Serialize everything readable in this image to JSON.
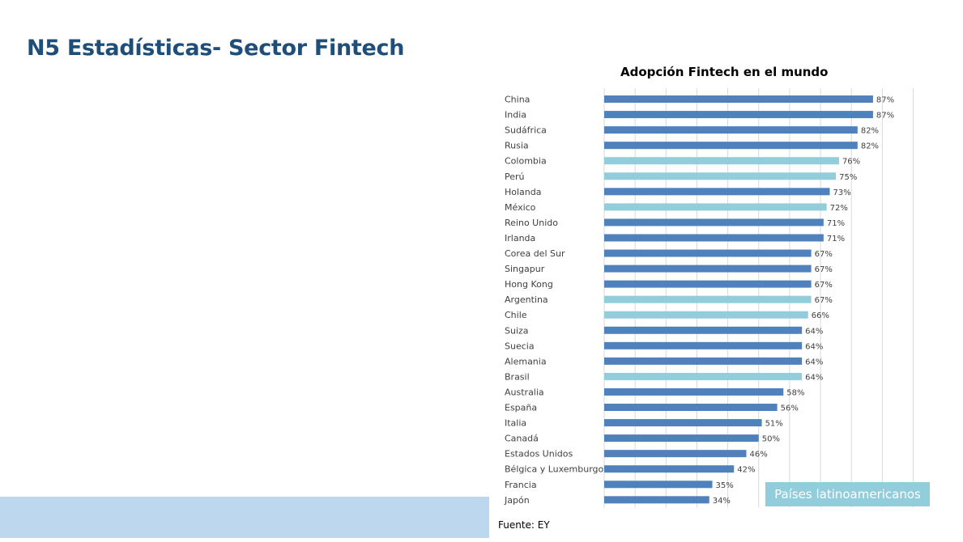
{
  "page": {
    "title": "N5 Estadísticas- Sector Fintech"
  },
  "chart_data": {
    "type": "bar",
    "orientation": "horizontal",
    "title": "Adopción Fintech en el mundo",
    "xlabel": "",
    "ylabel": "",
    "xlim": [
      0,
      100
    ],
    "grid": true,
    "categories": [
      "China",
      "India",
      "Sudáfrica",
      "Rusia",
      "Colombia",
      "Perú",
      "Holanda",
      "México",
      "Reino Unido",
      "Irlanda",
      "Corea del Sur",
      "Singapur",
      "Hong Kong",
      "Argentina",
      "Chile",
      "Suiza",
      "Suecia",
      "Alemania",
      "Brasil",
      "Australia",
      "España",
      "Italia",
      "Canadá",
      "Estados Unidos",
      "Bélgica y Luxemburgo",
      "Francia",
      "Japón"
    ],
    "values": [
      87,
      87,
      82,
      82,
      76,
      75,
      73,
      72,
      71,
      71,
      67,
      67,
      67,
      67,
      66,
      64,
      64,
      64,
      64,
      58,
      56,
      51,
      50,
      46,
      42,
      35,
      34
    ],
    "value_labels": [
      "87%",
      "87%",
      "82%",
      "82%",
      "76%",
      "75%",
      "73%",
      "72%",
      "71%",
      "71%",
      "67%",
      "67%",
      "67%",
      "67%",
      "66%",
      "64%",
      "64%",
      "64%",
      "64%",
      "58%",
      "56%",
      "51%",
      "50%",
      "46%",
      "42%",
      "35%",
      "34%"
    ],
    "latin_america": [
      false,
      false,
      false,
      false,
      true,
      true,
      false,
      true,
      false,
      false,
      false,
      false,
      false,
      true,
      true,
      false,
      false,
      false,
      true,
      false,
      false,
      false,
      false,
      false,
      false,
      false,
      false
    ],
    "colors": {
      "default": "#4f81bd",
      "latin_america": "#92cddc",
      "grid": "#d9d9d9"
    },
    "legend": {
      "label": "Países latinoamericanos",
      "placement": "bottom-right"
    }
  },
  "source": "Fuente: EY"
}
